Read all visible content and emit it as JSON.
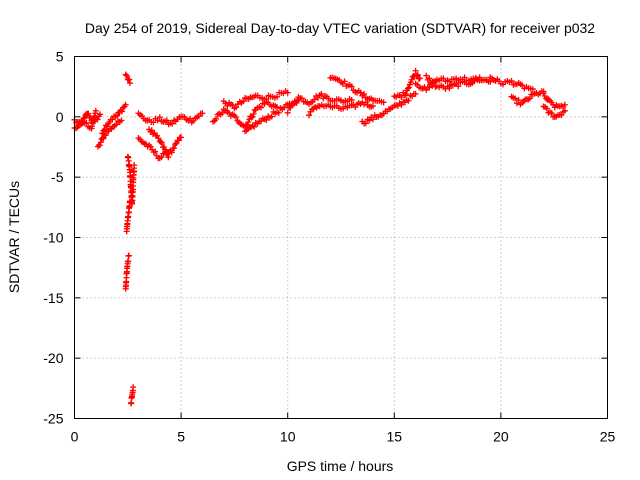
{
  "chart_data": {
    "type": "scatter",
    "title": "Day 254 of 2019, Sidereal Day-to-day VTEC variation (SDTVAR) for receiver p032",
    "xlabel": "GPS time / hours",
    "ylabel": "SDTVAR / TECUs",
    "xlim": [
      0,
      25
    ],
    "ylim": [
      -25,
      5
    ],
    "xticks": [
      0,
      5,
      10,
      15,
      20,
      25
    ],
    "yticks": [
      5,
      0,
      -5,
      -10,
      -15,
      -20,
      -25
    ],
    "xtick_labels": [
      "0",
      "5",
      "10",
      "15",
      "20",
      "25"
    ],
    "ytick_labels": [
      "5",
      "0",
      "-5",
      "-10",
      "-15",
      "-20",
      "-25"
    ],
    "grid": true,
    "marker": "+",
    "color": "#ff0000",
    "series": [
      {
        "name": "p032",
        "segments": [
          {
            "x0": 0.0,
            "x1": 1.2,
            "points": [
              [
                0.0,
                -0.3
              ],
              [
                0.3,
                -0.7
              ],
              [
                0.6,
                0.3
              ],
              [
                0.9,
                -0.5
              ],
              [
                1.2,
                0.2
              ]
            ]
          },
          {
            "x0": 0.0,
            "x1": 1.0,
            "points": [
              [
                0.0,
                -1.0
              ],
              [
                0.4,
                -0.4
              ],
              [
                0.8,
                -0.9
              ],
              [
                1.0,
                0.5
              ]
            ]
          },
          {
            "x0": 1.0,
            "x1": 2.2,
            "points": [
              [
                1.1,
                -2.6
              ],
              [
                1.4,
                -1.5
              ],
              [
                1.8,
                -0.8
              ],
              [
                2.2,
                -0.3
              ]
            ]
          },
          {
            "x0": 1.3,
            "x1": 2.4,
            "points": [
              [
                1.3,
                -1.2
              ],
              [
                1.7,
                -0.2
              ],
              [
                2.0,
                0.1
              ],
              [
                2.4,
                1.0
              ]
            ]
          },
          {
            "x0": 2.4,
            "x1": 2.6,
            "points": [
              [
                2.4,
                3.5
              ],
              [
                2.5,
                3.2
              ],
              [
                2.6,
                2.8
              ]
            ]
          },
          {
            "x0": 2.5,
            "x1": 2.8,
            "points": [
              [
                2.5,
                -3.2
              ],
              [
                2.6,
                -4.5
              ],
              [
                2.65,
                -6.0
              ],
              [
                2.7,
                -7.2
              ],
              [
                2.75,
                -5.5
              ],
              [
                2.8,
                -4.0
              ]
            ]
          },
          {
            "x0": 2.45,
            "x1": 2.6,
            "points": [
              [
                2.45,
                -9.5
              ],
              [
                2.5,
                -8.5
              ],
              [
                2.55,
                -7.8
              ],
              [
                2.6,
                -7.0
              ]
            ]
          },
          {
            "x0": 2.4,
            "x1": 2.55,
            "points": [
              [
                2.4,
                -14.2
              ],
              [
                2.45,
                -13.0
              ],
              [
                2.5,
                -12.0
              ],
              [
                2.55,
                -11.5
              ]
            ]
          },
          {
            "x0": 2.65,
            "x1": 2.75,
            "points": [
              [
                2.65,
                -23.7
              ],
              [
                2.7,
                -23.0
              ],
              [
                2.75,
                -22.4
              ]
            ]
          },
          {
            "x0": 3.0,
            "x1": 6.0,
            "points": [
              [
                3.0,
                0.2
              ],
              [
                3.5,
                -0.4
              ],
              [
                4.0,
                -0.2
              ],
              [
                4.5,
                -0.6
              ],
              [
                5.0,
                0.0
              ],
              [
                5.5,
                -0.3
              ],
              [
                6.0,
                0.3
              ]
            ]
          },
          {
            "x0": 3.0,
            "x1": 4.5,
            "points": [
              [
                3.0,
                -1.8
              ],
              [
                3.5,
                -2.5
              ],
              [
                4.0,
                -3.4
              ],
              [
                4.5,
                -2.8
              ]
            ]
          },
          {
            "x0": 3.5,
            "x1": 5.0,
            "points": [
              [
                3.5,
                -1.0
              ],
              [
                4.0,
                -2.0
              ],
              [
                4.4,
                -3.2
              ],
              [
                5.0,
                -1.7
              ]
            ]
          },
          {
            "x0": 6.5,
            "x1": 9.5,
            "points": [
              [
                6.5,
                -0.3
              ],
              [
                7.0,
                0.5
              ],
              [
                7.5,
                0.0
              ],
              [
                8.0,
                -0.8
              ],
              [
                8.5,
                0.6
              ],
              [
                9.0,
                1.2
              ],
              [
                9.5,
                0.8
              ]
            ]
          },
          {
            "x0": 7.0,
            "x1": 10.0,
            "points": [
              [
                7.0,
                1.2
              ],
              [
                7.5,
                0.8
              ],
              [
                8.0,
                1.4
              ],
              [
                8.5,
                1.7
              ],
              [
                9.0,
                1.6
              ],
              [
                9.5,
                1.8
              ],
              [
                10.0,
                2.0
              ]
            ]
          },
          {
            "x0": 8.0,
            "x1": 10.5,
            "points": [
              [
                8.0,
                -1.3
              ],
              [
                8.5,
                -0.6
              ],
              [
                9.0,
                -0.1
              ],
              [
                9.5,
                0.4
              ],
              [
                10.0,
                0.9
              ],
              [
                10.5,
                1.4
              ]
            ]
          },
          {
            "x0": 10.0,
            "x1": 13.0,
            "points": [
              [
                10.0,
                0.5
              ],
              [
                10.5,
                1.6
              ],
              [
                11.0,
                1.2
              ],
              [
                11.5,
                1.8
              ],
              [
                12.0,
                1.5
              ],
              [
                12.5,
                1.3
              ],
              [
                13.0,
                1.4
              ]
            ]
          },
          {
            "x0": 12.0,
            "x1": 14.5,
            "points": [
              [
                12.0,
                3.4
              ],
              [
                12.5,
                3.0
              ],
              [
                13.0,
                2.4
              ],
              [
                13.5,
                1.8
              ],
              [
                14.0,
                1.4
              ],
              [
                14.5,
                1.2
              ]
            ]
          },
          {
            "x0": 11.0,
            "x1": 14.0,
            "points": [
              [
                11.0,
                0.3
              ],
              [
                11.5,
                1.0
              ],
              [
                12.5,
                0.7
              ],
              [
                13.0,
                0.8
              ],
              [
                13.5,
                1.2
              ],
              [
                14.0,
                0.9
              ]
            ]
          },
          {
            "x0": 13.5,
            "x1": 16.0,
            "points": [
              [
                13.5,
                -0.5
              ],
              [
                14.0,
                -0.1
              ],
              [
                14.5,
                0.3
              ],
              [
                15.0,
                0.8
              ],
              [
                15.5,
                1.3
              ],
              [
                16.0,
                1.9
              ]
            ]
          },
          {
            "x0": 15.0,
            "x1": 16.2,
            "points": [
              [
                15.0,
                1.6
              ],
              [
                15.5,
                1.9
              ],
              [
                16.0,
                3.7
              ],
              [
                16.2,
                3.2
              ]
            ]
          },
          {
            "x0": 16.0,
            "x1": 19.0,
            "points": [
              [
                16.0,
                2.8
              ],
              [
                16.5,
                2.2
              ],
              [
                17.0,
                3.1
              ],
              [
                17.5,
                3.0
              ],
              [
                18.0,
                3.2
              ],
              [
                18.5,
                3.1
              ],
              [
                19.0,
                3.0
              ]
            ]
          },
          {
            "x0": 16.5,
            "x1": 19.5,
            "points": [
              [
                16.5,
                3.3
              ],
              [
                17.0,
                2.5
              ],
              [
                17.5,
                2.4
              ],
              [
                18.0,
                2.7
              ],
              [
                18.5,
                2.8
              ],
              [
                19.0,
                3.2
              ],
              [
                19.5,
                2.9
              ]
            ]
          },
          {
            "x0": 19.5,
            "x1": 21.5,
            "points": [
              [
                19.5,
                3.3
              ],
              [
                20.0,
                2.8
              ],
              [
                20.5,
                2.9
              ],
              [
                21.0,
                2.5
              ],
              [
                21.5,
                2.3
              ]
            ]
          },
          {
            "x0": 20.5,
            "x1": 22.0,
            "points": [
              [
                20.5,
                1.5
              ],
              [
                21.0,
                1.1
              ],
              [
                21.5,
                1.8
              ],
              [
                22.0,
                2.1
              ]
            ]
          },
          {
            "x0": 22.0,
            "x1": 23.0,
            "points": [
              [
                22.0,
                1.8
              ],
              [
                22.3,
                1.2
              ],
              [
                22.6,
                0.8
              ],
              [
                23.0,
                1.0
              ]
            ]
          },
          {
            "x0": 22.0,
            "x1": 23.0,
            "points": [
              [
                22.0,
                0.8
              ],
              [
                22.3,
                0.3
              ],
              [
                22.6,
                0.0
              ],
              [
                23.0,
                0.5
              ]
            ]
          }
        ]
      }
    ]
  }
}
